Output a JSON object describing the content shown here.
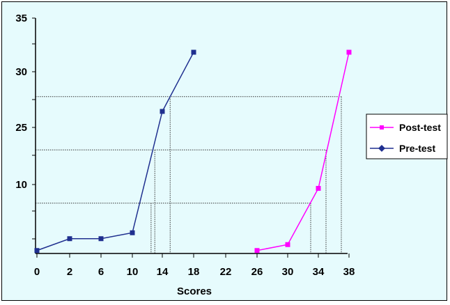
{
  "chart_data": {
    "type": "line",
    "title": "",
    "xlabel": "Scores",
    "ylabel": "",
    "x_ticks": [
      "0",
      "2",
      "6",
      "10",
      "14",
      "18",
      "22",
      "26",
      "30",
      "34",
      "38"
    ],
    "y_ticks": [
      "35",
      "30",
      "25",
      "10"
    ],
    "grid": "dotted reference lines",
    "legend_position": "right",
    "series": [
      {
        "name": "Post-test",
        "color": "#ff00ff",
        "marker": "square",
        "points": [
          {
            "x": 26,
            "y": 0.5
          },
          {
            "x": 30,
            "y": 1.5
          },
          {
            "x": 34,
            "y": 11
          },
          {
            "x": 38,
            "y": 34
          }
        ]
      },
      {
        "name": "Pre-test",
        "color": "#1f2f8f",
        "marker": "diamond",
        "points": [
          {
            "x": 0,
            "y": 0.5
          },
          {
            "x": 2,
            "y": 2.5
          },
          {
            "x": 6,
            "y": 2.5
          },
          {
            "x": 10,
            "y": 3.5
          },
          {
            "x": 14,
            "y": 24
          },
          {
            "x": 18,
            "y": 34
          }
        ]
      }
    ],
    "reference_lines": [
      {
        "y": 8.5,
        "x_pre": 12.5,
        "x_post": 33
      },
      {
        "y": 17.5,
        "x_pre": 13,
        "x_post": 35
      },
      {
        "y": 26.5,
        "x_pre": 15,
        "x_post": 37
      }
    ]
  }
}
